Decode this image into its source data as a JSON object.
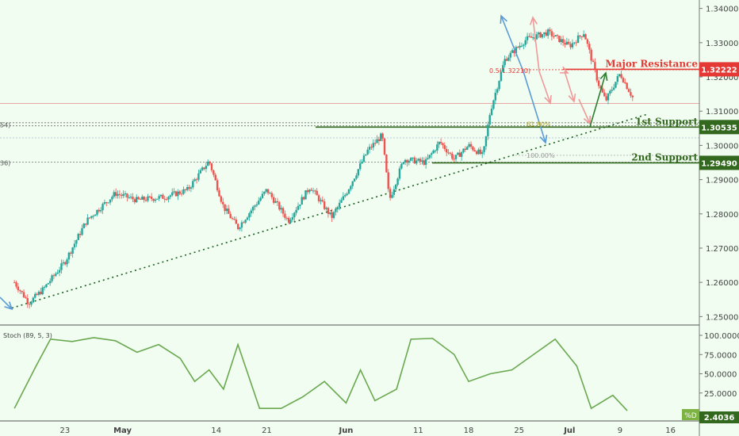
{
  "chart_data": {
    "type": "candlestick",
    "price_axis": {
      "ticks": [
        "1.34000",
        "1.33000",
        "1.32000",
        "1.31000",
        "1.30000",
        "1.29000",
        "1.28000",
        "1.27000",
        "1.26000",
        "1.25000"
      ],
      "ylim": [
        1.248,
        1.342
      ]
    },
    "x_axis": {
      "ticks": [
        "23",
        "May",
        "14",
        "21",
        "Jun",
        "11",
        "18",
        "25",
        "Jul",
        "9",
        "16"
      ],
      "bold_ticks": [
        "May",
        "Jun",
        "Jul"
      ]
    },
    "price_series": [
      {
        "x": "2018-04-16",
        "y": 1.26
      },
      {
        "x": "2018-04-18",
        "y": 1.254
      },
      {
        "x": "2018-04-20",
        "y": 1.258
      },
      {
        "x": "2018-04-23",
        "y": 1.266
      },
      {
        "x": "2018-04-26",
        "y": 1.278
      },
      {
        "x": "2018-04-30",
        "y": 1.286
      },
      {
        "x": "2018-05-03",
        "y": 1.284
      },
      {
        "x": "2018-05-07",
        "y": 1.285
      },
      {
        "x": "2018-05-10",
        "y": 1.287
      },
      {
        "x": "2018-05-13",
        "y": 1.2955
      },
      {
        "x": "2018-05-15",
        "y": 1.282
      },
      {
        "x": "2018-05-17",
        "y": 1.276
      },
      {
        "x": "2018-05-21",
        "y": 1.287
      },
      {
        "x": "2018-05-24",
        "y": 1.278
      },
      {
        "x": "2018-05-27",
        "y": 1.288
      },
      {
        "x": "2018-05-30",
        "y": 1.279
      },
      {
        "x": "2018-06-01",
        "y": 1.286
      },
      {
        "x": "2018-06-04",
        "y": 1.2985
      },
      {
        "x": "2018-06-06",
        "y": 1.303
      },
      {
        "x": "2018-06-07",
        "y": 1.284
      },
      {
        "x": "2018-06-09",
        "y": 1.296
      },
      {
        "x": "2018-06-12",
        "y": 1.295
      },
      {
        "x": "2018-06-14",
        "y": 1.301
      },
      {
        "x": "2018-06-16",
        "y": 1.296
      },
      {
        "x": "2018-06-18",
        "y": 1.3
      },
      {
        "x": "2018-06-20",
        "y": 1.297
      },
      {
        "x": "2018-06-21",
        "y": 1.31
      },
      {
        "x": "2018-06-23",
        "y": 1.325
      },
      {
        "x": "2018-06-26",
        "y": 1.331
      },
      {
        "x": "2018-06-29",
        "y": 1.333
      },
      {
        "x": "2018-07-02",
        "y": 1.329
      },
      {
        "x": "2018-07-04",
        "y": 1.333
      },
      {
        "x": "2018-07-06",
        "y": 1.318
      },
      {
        "x": "2018-07-07",
        "y": 1.313
      },
      {
        "x": "2018-07-09",
        "y": 1.321
      },
      {
        "x": "2018-07-11",
        "y": 1.313
      }
    ],
    "annotations": {
      "major_resistance": {
        "label": "Major Resistance",
        "value": "1.32222",
        "color": "#e53935"
      },
      "first_support": {
        "label": "1st Support",
        "value": "1.30535",
        "color": "#33691e"
      },
      "second_support": {
        "label": "2nd Support",
        "value": "1.29490",
        "color": "#33691e"
      },
      "fib_resistance": "0.5(1.32210)",
      "fib_support_1": "61.80%",
      "fib_support_2": "100.00%",
      "left_level_1": "54)",
      "left_level_2": "36)"
    },
    "stochastic": {
      "label": "Stoch (89, 5, 3)",
      "ticks": [
        "100.0000",
        "75.0000",
        "50.0000",
        "25.0000"
      ],
      "ylim": [
        0,
        100
      ],
      "current_label": "%D",
      "current_value": "2.4036",
      "values": [
        {
          "x": "2018-04-16",
          "y": 5
        },
        {
          "x": "2018-04-19",
          "y": 60
        },
        {
          "x": "2018-04-21",
          "y": 95
        },
        {
          "x": "2018-04-24",
          "y": 92
        },
        {
          "x": "2018-04-27",
          "y": 97
        },
        {
          "x": "2018-04-30",
          "y": 93
        },
        {
          "x": "2018-05-03",
          "y": 78
        },
        {
          "x": "2018-05-06",
          "y": 88
        },
        {
          "x": "2018-05-09",
          "y": 70
        },
        {
          "x": "2018-05-11",
          "y": 40
        },
        {
          "x": "2018-05-13",
          "y": 55
        },
        {
          "x": "2018-05-15",
          "y": 30
        },
        {
          "x": "2018-05-17",
          "y": 88
        },
        {
          "x": "2018-05-20",
          "y": 5
        },
        {
          "x": "2018-05-23",
          "y": 5
        },
        {
          "x": "2018-05-26",
          "y": 20
        },
        {
          "x": "2018-05-29",
          "y": 40
        },
        {
          "x": "2018-06-01",
          "y": 12
        },
        {
          "x": "2018-06-03",
          "y": 55
        },
        {
          "x": "2018-06-05",
          "y": 15
        },
        {
          "x": "2018-06-08",
          "y": 30
        },
        {
          "x": "2018-06-10",
          "y": 95
        },
        {
          "x": "2018-06-13",
          "y": 96
        },
        {
          "x": "2018-06-16",
          "y": 75
        },
        {
          "x": "2018-06-18",
          "y": 40
        },
        {
          "x": "2018-06-21",
          "y": 50
        },
        {
          "x": "2018-06-24",
          "y": 55
        },
        {
          "x": "2018-06-27",
          "y": 75
        },
        {
          "x": "2018-06-30",
          "y": 95
        },
        {
          "x": "2018-07-03",
          "y": 60
        },
        {
          "x": "2018-07-05",
          "y": 5
        },
        {
          "x": "2018-07-08",
          "y": 22
        },
        {
          "x": "2018-07-10",
          "y": 2
        }
      ]
    }
  },
  "colors": {
    "background": "#f0fdf0",
    "up": "#26a69a",
    "down": "#ef5350",
    "support": "#33691e",
    "resistance": "#e53935",
    "trend_arrow_blue": "#5b9bd5",
    "trend_arrow_green": "#2e7d32",
    "trend_arrow_pink": "#ef9a9a",
    "stoch_line": "#6aa84f"
  }
}
